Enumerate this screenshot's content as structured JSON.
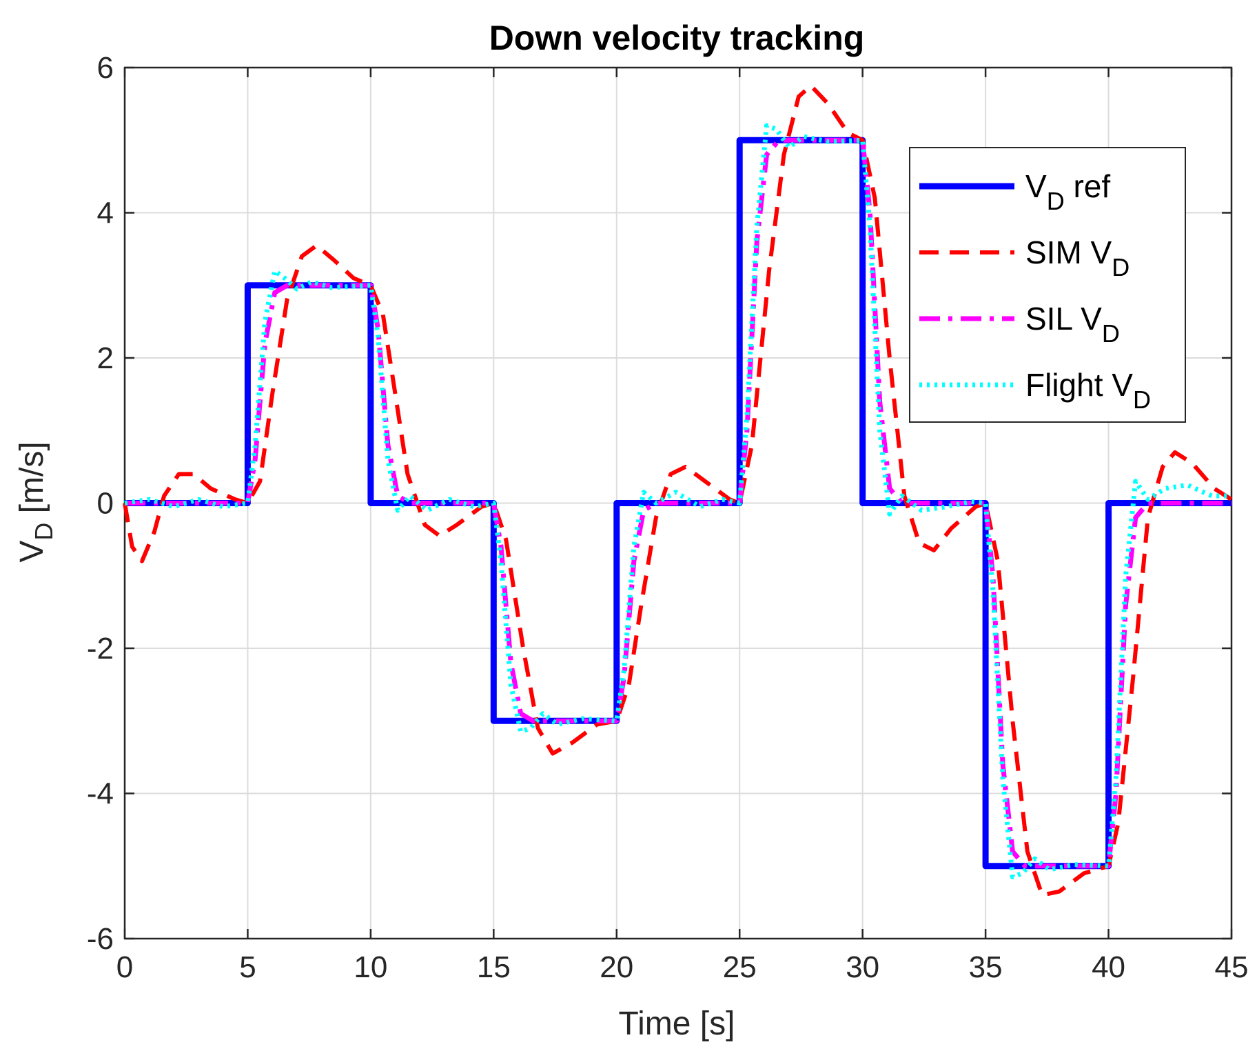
{
  "chart_data": {
    "type": "line",
    "title": "Down velocity tracking",
    "xlabel": "Time [s]",
    "ylabel": {
      "main": "V",
      "sub": "D",
      "rest": " [m/s]"
    },
    "xlim": [
      0,
      45
    ],
    "ylim": [
      -6,
      6
    ],
    "xticks": [
      0,
      5,
      10,
      15,
      20,
      25,
      30,
      35,
      40,
      45
    ],
    "yticks": [
      -6,
      -4,
      -2,
      0,
      2,
      4,
      6
    ],
    "grid": true,
    "legend_position": "top-right",
    "series": [
      {
        "name": "V_D ref",
        "legend": {
          "main": "V",
          "sub": "D",
          "rest": " ref"
        },
        "color": "#0000ff",
        "style": "solid",
        "points": [
          [
            0,
            0
          ],
          [
            5,
            0
          ],
          [
            5,
            3
          ],
          [
            10,
            3
          ],
          [
            10,
            0
          ],
          [
            15,
            0
          ],
          [
            15,
            -3
          ],
          [
            20,
            -3
          ],
          [
            20,
            0
          ],
          [
            25,
            0
          ],
          [
            25,
            5
          ],
          [
            30,
            5
          ],
          [
            30,
            0
          ],
          [
            35,
            0
          ],
          [
            35,
            -5
          ],
          [
            40,
            -5
          ],
          [
            40,
            0
          ],
          [
            45,
            0
          ]
        ]
      },
      {
        "name": "SIM V_D",
        "legend": {
          "main": "SIM V",
          "sub": "D",
          "rest": ""
        },
        "color": "#ff0000",
        "style": "dashed",
        "points": [
          [
            0,
            0
          ],
          [
            0.3,
            -0.6
          ],
          [
            0.7,
            -0.8
          ],
          [
            1.2,
            -0.4
          ],
          [
            1.6,
            0.1
          ],
          [
            2.2,
            0.4
          ],
          [
            2.8,
            0.4
          ],
          [
            3.5,
            0.2
          ],
          [
            4.5,
            0.05
          ],
          [
            5,
            0
          ],
          [
            5.5,
            0.3
          ],
          [
            6,
            1.5
          ],
          [
            6.6,
            2.8
          ],
          [
            7.2,
            3.4
          ],
          [
            7.8,
            3.55
          ],
          [
            8.5,
            3.35
          ],
          [
            9.3,
            3.1
          ],
          [
            10,
            3
          ],
          [
            10.5,
            2.6
          ],
          [
            11,
            1.5
          ],
          [
            11.5,
            0.4
          ],
          [
            12.2,
            -0.3
          ],
          [
            12.8,
            -0.45
          ],
          [
            13.5,
            -0.3
          ],
          [
            14.5,
            -0.05
          ],
          [
            15,
            0
          ],
          [
            15.5,
            -0.5
          ],
          [
            16.2,
            -2.0
          ],
          [
            16.8,
            -3.1
          ],
          [
            17.4,
            -3.45
          ],
          [
            18.2,
            -3.3
          ],
          [
            19.2,
            -3.05
          ],
          [
            20,
            -3
          ],
          [
            20.5,
            -2.5
          ],
          [
            21,
            -1.4
          ],
          [
            21.6,
            -0.2
          ],
          [
            22.2,
            0.4
          ],
          [
            22.8,
            0.5
          ],
          [
            23.6,
            0.3
          ],
          [
            24.6,
            0.05
          ],
          [
            25,
            0
          ],
          [
            25.5,
            0.8
          ],
          [
            26.2,
            3.2
          ],
          [
            26.8,
            4.8
          ],
          [
            27.4,
            5.6
          ],
          [
            27.9,
            5.75
          ],
          [
            28.6,
            5.5
          ],
          [
            29.4,
            5.1
          ],
          [
            30,
            5
          ],
          [
            30.5,
            4.2
          ],
          [
            31.1,
            2.0
          ],
          [
            31.7,
            0.1
          ],
          [
            32.3,
            -0.55
          ],
          [
            32.9,
            -0.65
          ],
          [
            33.6,
            -0.35
          ],
          [
            34.6,
            -0.05
          ],
          [
            35,
            0
          ],
          [
            35.5,
            -0.8
          ],
          [
            36.1,
            -3.0
          ],
          [
            36.7,
            -4.8
          ],
          [
            37.3,
            -5.4
          ],
          [
            38.0,
            -5.35
          ],
          [
            39.0,
            -5.1
          ],
          [
            40,
            -5
          ],
          [
            40.4,
            -4.4
          ],
          [
            41,
            -2.4
          ],
          [
            41.6,
            -0.2
          ],
          [
            42.2,
            0.5
          ],
          [
            42.7,
            0.7
          ],
          [
            43.4,
            0.55
          ],
          [
            44.3,
            0.2
          ],
          [
            45,
            0.05
          ]
        ]
      },
      {
        "name": "SIL V_D",
        "legend": {
          "main": "SIL V",
          "sub": "D",
          "rest": ""
        },
        "color": "#ff00ff",
        "style": "dashdot",
        "points": [
          [
            0,
            0
          ],
          [
            5,
            0
          ],
          [
            5.3,
            0.6
          ],
          [
            5.7,
            2.2
          ],
          [
            6.1,
            2.9
          ],
          [
            6.6,
            3.0
          ],
          [
            10,
            3
          ],
          [
            10.3,
            2.4
          ],
          [
            10.7,
            0.8
          ],
          [
            11.1,
            0.1
          ],
          [
            11.6,
            0
          ],
          [
            15,
            0
          ],
          [
            15.3,
            -0.6
          ],
          [
            15.7,
            -2.2
          ],
          [
            16.1,
            -2.9
          ],
          [
            16.6,
            -3.0
          ],
          [
            20,
            -3
          ],
          [
            20.3,
            -2.4
          ],
          [
            20.7,
            -0.8
          ],
          [
            21.1,
            -0.1
          ],
          [
            21.6,
            0
          ],
          [
            25,
            0
          ],
          [
            25.3,
            1.0
          ],
          [
            25.7,
            3.6
          ],
          [
            26.1,
            4.8
          ],
          [
            26.6,
            5.0
          ],
          [
            30,
            5
          ],
          [
            30.3,
            4.0
          ],
          [
            30.7,
            1.4
          ],
          [
            31.1,
            0.2
          ],
          [
            31.6,
            0
          ],
          [
            35,
            0
          ],
          [
            35.3,
            -1.0
          ],
          [
            35.7,
            -3.6
          ],
          [
            36.1,
            -4.8
          ],
          [
            36.6,
            -5.0
          ],
          [
            40,
            -5
          ],
          [
            40.3,
            -4.0
          ],
          [
            40.7,
            -1.4
          ],
          [
            41.1,
            -0.2
          ],
          [
            41.6,
            0
          ],
          [
            45,
            0
          ]
        ]
      },
      {
        "name": "Flight V_D",
        "legend": {
          "main": "Flight V",
          "sub": "D",
          "rest": ""
        },
        "color": "#00ffff",
        "style": "dotted",
        "points": [
          [
            0,
            0
          ],
          [
            1,
            0.05
          ],
          [
            2,
            -0.05
          ],
          [
            3,
            0.05
          ],
          [
            4,
            -0.05
          ],
          [
            5,
            0
          ],
          [
            5.3,
            0.8
          ],
          [
            5.7,
            2.5
          ],
          [
            6.1,
            3.2
          ],
          [
            6.5,
            3.1
          ],
          [
            7,
            2.95
          ],
          [
            7.6,
            3.05
          ],
          [
            8.4,
            2.97
          ],
          [
            10,
            3
          ],
          [
            10.3,
            2.3
          ],
          [
            10.7,
            0.6
          ],
          [
            11.1,
            -0.1
          ],
          [
            11.6,
            0.1
          ],
          [
            12.3,
            -0.1
          ],
          [
            13.2,
            0.05
          ],
          [
            14.2,
            -0.05
          ],
          [
            15,
            0
          ],
          [
            15.3,
            -0.8
          ],
          [
            15.7,
            -2.5
          ],
          [
            16.1,
            -3.15
          ],
          [
            16.5,
            -3.1
          ],
          [
            17,
            -2.9
          ],
          [
            17.6,
            -3.05
          ],
          [
            18.6,
            -2.97
          ],
          [
            20,
            -3
          ],
          [
            20.3,
            -2.3
          ],
          [
            20.7,
            -0.6
          ],
          [
            21.1,
            0.15
          ],
          [
            21.6,
            0.0
          ],
          [
            22.4,
            0.15
          ],
          [
            23.4,
            -0.05
          ],
          [
            24.3,
            0.05
          ],
          [
            25,
            0
          ],
          [
            25.3,
            1.2
          ],
          [
            25.7,
            3.8
          ],
          [
            26.1,
            5.2
          ],
          [
            26.5,
            5.15
          ],
          [
            27,
            4.9
          ],
          [
            27.6,
            5.05
          ],
          [
            28.6,
            4.98
          ],
          [
            30,
            5
          ],
          [
            30.3,
            3.8
          ],
          [
            30.7,
            1.0
          ],
          [
            31.1,
            -0.15
          ],
          [
            31.6,
            0.1
          ],
          [
            32.4,
            -0.1
          ],
          [
            33.4,
            -0.05
          ],
          [
            34.4,
            0.02
          ],
          [
            35,
            0
          ],
          [
            35.3,
            -1.2
          ],
          [
            35.7,
            -3.8
          ],
          [
            36.1,
            -5.15
          ],
          [
            36.5,
            -5.1
          ],
          [
            37,
            -4.9
          ],
          [
            37.6,
            -5.05
          ],
          [
            38.6,
            -4.98
          ],
          [
            40,
            -5
          ],
          [
            40.3,
            -3.8
          ],
          [
            40.7,
            -1.0
          ],
          [
            41.1,
            0.3
          ],
          [
            41.6,
            0.05
          ],
          [
            42.3,
            0.2
          ],
          [
            43.2,
            0.25
          ],
          [
            44.2,
            0.1
          ],
          [
            45,
            0.1
          ]
        ]
      }
    ]
  }
}
